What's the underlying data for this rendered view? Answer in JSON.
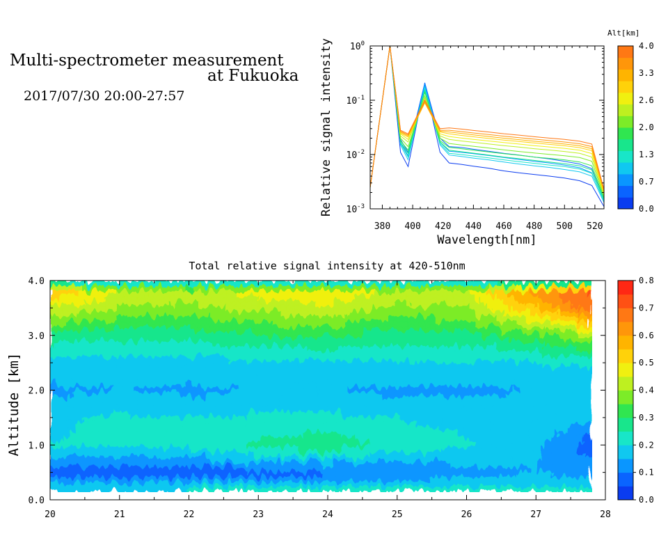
{
  "header": {
    "title_line1": "Multi-spectrometer measurement",
    "title_line2": "at Fukuoka",
    "datetime": "2017/07/30 20:00-27:57"
  },
  "chart_data": [
    {
      "type": "line",
      "title": "",
      "xlabel": "Wavelength[nm]",
      "ylabel": "Relative signal intensity",
      "xlim": [
        372,
        526
      ],
      "ylim": [
        0.001,
        1
      ],
      "yscale": "log",
      "x_ticks": [
        380,
        400,
        420,
        440,
        460,
        480,
        500,
        520
      ],
      "y_tick_labels": [
        "10^-3",
        "10^-2",
        "10^-1",
        "10^0"
      ],
      "grid": false,
      "colorbar": {
        "label": "Alt[km]",
        "tick_labels": [
          "0.0",
          "0.7",
          "1.3",
          "2.0",
          "2.6",
          "3.3",
          "4.0"
        ],
        "colors": [
          "#0a3cf0",
          "#0a64ff",
          "#0a96ff",
          "#10c8f0",
          "#18e6c8",
          "#18e68c",
          "#30e650",
          "#7cec28",
          "#bef020",
          "#f0f010",
          "#ffd20a",
          "#ffb400",
          "#ff960a",
          "#ff7814"
        ]
      },
      "x": [
        372,
        385,
        392,
        397,
        408,
        418,
        424,
        432,
        440,
        450,
        460,
        470,
        480,
        490,
        500,
        510,
        518,
        526
      ],
      "series": [
        {
          "altitude_km": 0.0,
          "color": "#0a3cf0",
          "values": [
            0.0025,
            1.0,
            0.011,
            0.006,
            0.2,
            0.011,
            0.007,
            0.0066,
            0.0061,
            0.0056,
            0.005,
            0.0046,
            0.0043,
            0.004,
            0.0037,
            0.0033,
            0.0027,
            0.0011
          ]
        },
        {
          "altitude_km": 0.3,
          "color": "#0a64ff",
          "values": [
            0.0025,
            1.0,
            0.019,
            0.011,
            0.21,
            0.02,
            0.014,
            0.0135,
            0.0125,
            0.0115,
            0.0105,
            0.0098,
            0.009,
            0.0083,
            0.0075,
            0.0067,
            0.0055,
            0.0015
          ]
        },
        {
          "altitude_km": 0.7,
          "color": "#0a96ff",
          "values": [
            0.0025,
            1.0,
            0.017,
            0.0095,
            0.2,
            0.017,
            0.0115,
            0.011,
            0.0104,
            0.0096,
            0.0088,
            0.0081,
            0.0075,
            0.007,
            0.0064,
            0.0057,
            0.0046,
            0.0014
          ]
        },
        {
          "altitude_km": 1.0,
          "color": "#10c8f0",
          "values": [
            0.0025,
            1.0,
            0.015,
            0.008,
            0.18,
            0.015,
            0.0098,
            0.0092,
            0.0086,
            0.008,
            0.0073,
            0.0067,
            0.0062,
            0.0058,
            0.0053,
            0.0048,
            0.004,
            0.0013
          ]
        },
        {
          "altitude_km": 1.3,
          "color": "#18e6c8",
          "values": [
            0.0025,
            1.0,
            0.016,
            0.009,
            0.16,
            0.016,
            0.0105,
            0.01,
            0.0094,
            0.0087,
            0.008,
            0.0074,
            0.0069,
            0.0064,
            0.006,
            0.0054,
            0.0045,
            0.0014
          ]
        },
        {
          "altitude_km": 1.6,
          "color": "#18e68c",
          "values": [
            0.0025,
            1.0,
            0.017,
            0.0105,
            0.15,
            0.017,
            0.012,
            0.0113,
            0.0106,
            0.0098,
            0.009,
            0.0084,
            0.0078,
            0.0073,
            0.0068,
            0.0062,
            0.0052,
            0.0015
          ]
        },
        {
          "altitude_km": 2.0,
          "color": "#30e650",
          "values": [
            0.0025,
            1.0,
            0.018,
            0.012,
            0.14,
            0.018,
            0.0135,
            0.0128,
            0.012,
            0.0112,
            0.0104,
            0.0097,
            0.009,
            0.0085,
            0.008,
            0.0073,
            0.0062,
            0.0016
          ]
        },
        {
          "altitude_km": 2.3,
          "color": "#7cec28",
          "values": [
            0.0025,
            1.0,
            0.02,
            0.014,
            0.12,
            0.02,
            0.016,
            0.015,
            0.0142,
            0.0132,
            0.0122,
            0.0114,
            0.0107,
            0.0101,
            0.0095,
            0.0088,
            0.0075,
            0.0017
          ]
        },
        {
          "altitude_km": 2.6,
          "color": "#bef020",
          "values": [
            0.0025,
            1.0,
            0.022,
            0.017,
            0.11,
            0.022,
            0.019,
            0.0178,
            0.0168,
            0.0157,
            0.0146,
            0.0137,
            0.0128,
            0.0121,
            0.0114,
            0.0105,
            0.009,
            0.0018
          ]
        },
        {
          "altitude_km": 3.0,
          "color": "#f0f010",
          "values": [
            0.0025,
            1.0,
            0.024,
            0.019,
            0.1,
            0.024,
            0.0215,
            0.0202,
            0.019,
            0.0178,
            0.0166,
            0.0156,
            0.0146,
            0.0138,
            0.013,
            0.012,
            0.0104,
            0.0019
          ]
        },
        {
          "altitude_km": 3.3,
          "color": "#ffd20a",
          "values": [
            0.0025,
            1.0,
            0.025,
            0.021,
            0.09,
            0.026,
            0.024,
            0.0225,
            0.0212,
            0.0198,
            0.0185,
            0.0174,
            0.0163,
            0.0154,
            0.0145,
            0.0134,
            0.0118,
            0.002
          ]
        },
        {
          "altitude_km": 3.6,
          "color": "#ffb400",
          "values": [
            0.0025,
            1.0,
            0.026,
            0.022,
            0.09,
            0.027,
            0.026,
            0.0245,
            0.023,
            0.0215,
            0.02,
            0.0188,
            0.0176,
            0.0166,
            0.0156,
            0.0145,
            0.0128,
            0.0021
          ]
        },
        {
          "altitude_km": 4.0,
          "color": "#ff960a",
          "values": [
            0.0025,
            1.0,
            0.027,
            0.023,
            0.095,
            0.028,
            0.028,
            0.0265,
            0.025,
            0.0234,
            0.0218,
            0.0205,
            0.0192,
            0.0181,
            0.017,
            0.0158,
            0.014,
            0.0022
          ]
        },
        {
          "altitude_km": 3.8,
          "color": "#ff7814",
          "values": [
            0.0025,
            1.0,
            0.028,
            0.024,
            0.1,
            0.03,
            0.031,
            0.0295,
            0.0278,
            0.026,
            0.0242,
            0.0228,
            0.0213,
            0.0201,
            0.019,
            0.0176,
            0.0156,
            0.0023
          ]
        }
      ]
    },
    {
      "type": "heatmap",
      "title": "Total relative signal intensity at 420-510nm",
      "xlabel": "",
      "ylabel": "Altitude [km]",
      "xlim": [
        20,
        28
      ],
      "ylim": [
        0,
        4
      ],
      "x_ticks": [
        20,
        21,
        22,
        23,
        24,
        25,
        26,
        27,
        28
      ],
      "y_tick_labels": [
        "0.0",
        "1.0",
        "2.0",
        "3.0",
        "4.0"
      ],
      "grid": false,
      "colorbar": {
        "tick_labels": [
          "0.0",
          "0.1",
          "0.2",
          "0.3",
          "0.4",
          "0.5",
          "0.6",
          "0.7",
          "0.8"
        ],
        "vmin": 0,
        "vmax": 0.8,
        "colors": [
          "#0a3cf0",
          "#0a64ff",
          "#0a96ff",
          "#10c8f0",
          "#18e6c8",
          "#18e68c",
          "#30e650",
          "#7cec28",
          "#bef020",
          "#f0f010",
          "#ffd20a",
          "#ffb400",
          "#ff960a",
          "#ff7814",
          "#ff5014",
          "#ff2814"
        ]
      },
      "data_extent": {
        "x": [
          20,
          27.8
        ],
        "y": [
          0.15,
          4.0
        ]
      },
      "x": [
        20,
        21,
        22,
        23,
        24,
        25,
        26,
        27,
        27.8
      ],
      "y": [
        0.15,
        0.5,
        1.0,
        1.5,
        2.0,
        2.5,
        3.0,
        3.5,
        3.8,
        4.0
      ],
      "z": [
        [
          0.22,
          0.21,
          0.22,
          0.22,
          0.22,
          0.22,
          0.22,
          0.22,
          0.22
        ],
        [
          0.06,
          0.07,
          0.07,
          0.08,
          0.09,
          0.1,
          0.13,
          0.15,
          0.13
        ],
        [
          0.2,
          0.21,
          0.22,
          0.26,
          0.29,
          0.22,
          0.21,
          0.16,
          0.07
        ],
        [
          0.19,
          0.21,
          0.2,
          0.21,
          0.21,
          0.2,
          0.18,
          0.18,
          0.18
        ],
        [
          0.14,
          0.15,
          0.14,
          0.15,
          0.15,
          0.14,
          0.14,
          0.15,
          0.15
        ],
        [
          0.18,
          0.17,
          0.18,
          0.19,
          0.2,
          0.19,
          0.19,
          0.2,
          0.21
        ],
        [
          0.28,
          0.26,
          0.27,
          0.29,
          0.3,
          0.28,
          0.28,
          0.33,
          0.4
        ],
        [
          0.45,
          0.4,
          0.38,
          0.42,
          0.44,
          0.38,
          0.4,
          0.55,
          0.68
        ],
        [
          0.55,
          0.45,
          0.43,
          0.47,
          0.49,
          0.44,
          0.45,
          0.62,
          0.72
        ],
        [
          0.17,
          0.17,
          0.17,
          0.17,
          0.17,
          0.17,
          0.17,
          0.17,
          0.17
        ]
      ]
    }
  ]
}
